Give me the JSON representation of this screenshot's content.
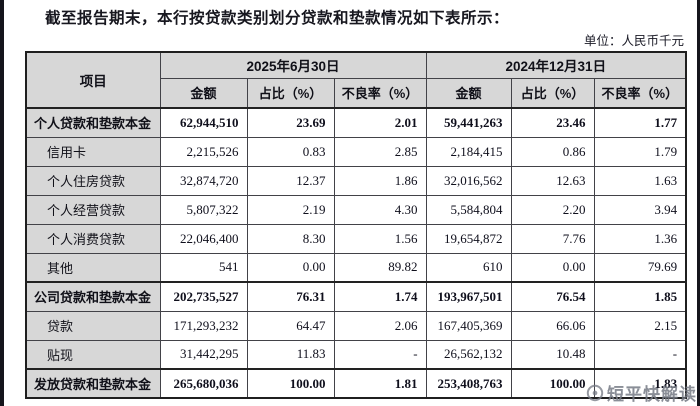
{
  "page": {
    "title": "截至报告期末，本行按贷款类别划分贷款和垫款情况如下表所示：",
    "unit_label": "单位：人民币千元",
    "watermark_text": "短平快解读",
    "colors": {
      "header_fill": "#d7d7d7",
      "border": "#424248",
      "text": "#15151f",
      "edge_strip": "#15151c",
      "watermark": "#767a85"
    }
  },
  "table": {
    "item_header": "项目",
    "period_headers": [
      "2025年6月30日",
      "2024年12月31日"
    ],
    "sub_headers": [
      "金额",
      "占比（%）",
      "不良率（%）",
      "金额",
      "占比（%）",
      "不良率（%）"
    ],
    "rows": [
      {
        "label": "个人贷款和垫款本金",
        "bold": true,
        "indent": false,
        "values": [
          "62,944,510",
          "23.69",
          "2.01",
          "59,441,263",
          "23.46",
          "1.77"
        ]
      },
      {
        "label": "信用卡",
        "bold": false,
        "indent": true,
        "values": [
          "2,215,526",
          "0.83",
          "2.85",
          "2,184,415",
          "0.86",
          "1.79"
        ]
      },
      {
        "label": "个人住房贷款",
        "bold": false,
        "indent": true,
        "values": [
          "32,874,720",
          "12.37",
          "1.86",
          "32,016,562",
          "12.63",
          "1.63"
        ]
      },
      {
        "label": "个人经营贷款",
        "bold": false,
        "indent": true,
        "values": [
          "5,807,322",
          "2.19",
          "4.30",
          "5,584,804",
          "2.20",
          "3.94"
        ]
      },
      {
        "label": "个人消费贷款",
        "bold": false,
        "indent": true,
        "values": [
          "22,046,400",
          "8.30",
          "1.56",
          "19,654,872",
          "7.76",
          "1.36"
        ]
      },
      {
        "label": "其他",
        "bold": false,
        "indent": true,
        "values": [
          "541",
          "0.00",
          "89.82",
          "610",
          "0.00",
          "79.69"
        ]
      },
      {
        "label": "公司贷款和垫款本金",
        "bold": true,
        "indent": false,
        "values": [
          "202,735,527",
          "76.31",
          "1.74",
          "193,967,501",
          "76.54",
          "1.85"
        ]
      },
      {
        "label": "贷款",
        "bold": false,
        "indent": true,
        "values": [
          "171,293,232",
          "64.47",
          "2.06",
          "167,405,369",
          "66.06",
          "2.15"
        ]
      },
      {
        "label": "贴现",
        "bold": false,
        "indent": true,
        "values": [
          "31,442,295",
          "11.83",
          "-",
          "26,562,132",
          "10.48",
          "-"
        ]
      },
      {
        "label": "发放贷款和垫款本金",
        "bold": true,
        "indent": false,
        "values": [
          "265,680,036",
          "100.00",
          "1.81",
          "253,408,763",
          "100.00",
          "1.83"
        ]
      }
    ]
  }
}
